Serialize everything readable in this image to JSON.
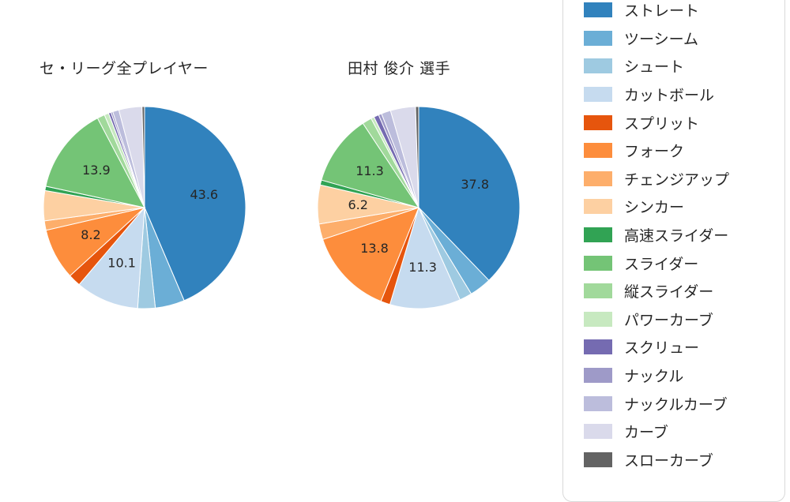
{
  "page": {
    "background": "#ffffff"
  },
  "chart_data": {
    "type": "pie",
    "start_angle": "top",
    "direction": "clockwise",
    "legend_position": "right",
    "label_threshold": 6,
    "categories": [
      "ストレート",
      "ツーシーム",
      "シュート",
      "カットボール",
      "スプリット",
      "フォーク",
      "チェンジアップ",
      "シンカー",
      "高速スライダー",
      "スライダー",
      "縦スライダー",
      "パワーカーブ",
      "スクリュー",
      "ナックル",
      "ナックルカーブ",
      "カーブ",
      "スローカーブ"
    ],
    "colors": [
      "#3182bd",
      "#6baed6",
      "#9ecae1",
      "#c6dbef",
      "#e6550d",
      "#fd8d3c",
      "#fdae6b",
      "#fdd0a2",
      "#31a354",
      "#74c476",
      "#a1d99b",
      "#c7e9c0",
      "#756bb1",
      "#9e9ac8",
      "#bcbddc",
      "#dadaeb",
      "#636363"
    ],
    "series": [
      {
        "name": "セ・リーグ全プレイヤー",
        "values": [
          43.6,
          4.7,
          2.8,
          10.1,
          2.0,
          8.2,
          1.5,
          4.8,
          0.7,
          13.9,
          1.2,
          0.7,
          0.4,
          0.3,
          1.0,
          3.7,
          0.4
        ],
        "visible_labels": [
          43.6,
          10.1,
          8.2,
          13.9
        ]
      },
      {
        "name": "田村 俊介 選手",
        "values": [
          37.8,
          3.5,
          2.0,
          11.3,
          1.5,
          13.8,
          2.5,
          6.2,
          0.8,
          11.3,
          1.5,
          0.5,
          0.8,
          0.5,
          1.5,
          4.0,
          0.5
        ],
        "visible_labels": [
          37.8,
          11.3,
          13.8,
          6.2,
          11.3
        ]
      }
    ]
  },
  "legend": {
    "items": [
      "ストレート",
      "ツーシーム",
      "シュート",
      "カットボール",
      "スプリット",
      "フォーク",
      "チェンジアップ",
      "シンカー",
      "高速スライダー",
      "スライダー",
      "縦スライダー",
      "パワーカーブ",
      "スクリュー",
      "ナックル",
      "ナックルカーブ",
      "カーブ",
      "スローカーブ"
    ]
  },
  "colors": {
    "pie_label_text": "#262626",
    "title_text": "#262626",
    "legend_border": "#d9d9d9",
    "slice_divider": "#ffffff"
  }
}
